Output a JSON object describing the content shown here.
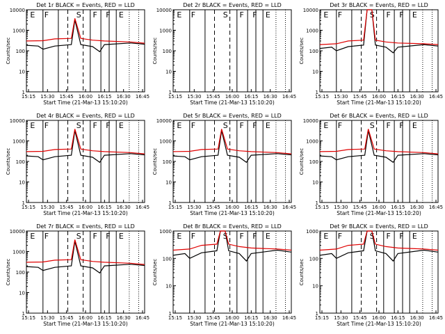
{
  "chart_data": [
    {
      "type": "line",
      "title": "Det 1r BLACK = Events, RED = LLD",
      "ylabel": "Counts/sec",
      "xlabel": "Start Time (21-Mar-13 15:10:20)",
      "yscale": "log",
      "ylim": [
        1,
        10000
      ],
      "x_ticks": [
        "15:15",
        "15:30",
        "15:45",
        "16:00",
        "16:15",
        "16:30",
        "16:45"
      ],
      "y_ticks": [
        "1",
        "10",
        "100",
        "1000",
        "10000"
      ],
      "region_labels": [
        "E",
        "F",
        "S",
        "F",
        "F",
        "E"
      ],
      "series": [
        {
          "color": "#000000",
          "points": [
            [
              0,
              185
            ],
            [
              10,
              170
            ],
            [
              14,
              120
            ],
            [
              24,
              170
            ],
            [
              38,
              200
            ],
            [
              41,
              3200
            ],
            [
              46,
              200
            ],
            [
              56,
              160
            ],
            [
              62,
              90
            ],
            [
              66,
              200
            ],
            [
              88,
              240
            ],
            [
              100,
              210
            ]
          ]
        },
        {
          "color": "#e00000",
          "points": [
            [
              0,
              300
            ],
            [
              14,
              310
            ],
            [
              24,
              380
            ],
            [
              38,
              400
            ],
            [
              41,
              3800
            ],
            [
              46,
              400
            ],
            [
              56,
              330
            ],
            [
              66,
              300
            ],
            [
              88,
              270
            ],
            [
              100,
              235
            ]
          ]
        }
      ]
    },
    {
      "type": "line",
      "title": "Det 2r BLACK = Events, RED = LLD",
      "ylabel": "Counts/sec",
      "xlabel": "Start Time (21-Mar-13 15:10:20)",
      "yscale": "log",
      "ylim": [
        1,
        10000
      ],
      "x_ticks": [
        "15:15",
        "15:30",
        "15:45",
        "16:00",
        "16:15",
        "16:30",
        "16:45"
      ],
      "y_ticks": [
        "1",
        "10",
        "100",
        "1000",
        "10000"
      ],
      "region_labels": [
        "E",
        "F",
        "S",
        "F",
        "F",
        "E"
      ],
      "series": []
    },
    {
      "type": "line",
      "title": "Det 3r BLACK = Events, RED = LLD",
      "ylabel": "Counts/sec",
      "xlabel": "Start Time (21-Mar-13 15:10:20)",
      "yscale": "log",
      "ylim": [
        1,
        10000
      ],
      "x_ticks": [
        "15:15",
        "15:30",
        "15:45",
        "16:00",
        "16:15",
        "16:30",
        "16:45"
      ],
      "y_ticks": [
        "1",
        "10",
        "100",
        "1000",
        "10000"
      ],
      "region_labels": [
        "E",
        "F",
        "S",
        "F",
        "F",
        "E"
      ],
      "series": [
        {
          "color": "#000000",
          "points": [
            [
              0,
              130
            ],
            [
              10,
              150
            ],
            [
              14,
              100
            ],
            [
              24,
              160
            ],
            [
              37,
              190
            ],
            [
              40,
              10000
            ],
            [
              44,
              10000
            ],
            [
              47,
              190
            ],
            [
              56,
              150
            ],
            [
              62,
              80
            ],
            [
              66,
              150
            ],
            [
              88,
              200
            ],
            [
              100,
              170
            ]
          ]
        },
        {
          "color": "#e00000",
          "points": [
            [
              0,
              200
            ],
            [
              14,
              220
            ],
            [
              24,
              300
            ],
            [
              37,
              330
            ],
            [
              40,
              10000
            ],
            [
              44,
              10000
            ],
            [
              47,
              330
            ],
            [
              56,
              270
            ],
            [
              66,
              240
            ],
            [
              88,
              220
            ],
            [
              100,
              200
            ]
          ]
        }
      ]
    },
    {
      "type": "line",
      "title": "Det 4r BLACK = Events, RED = LLD",
      "ylabel": "Counts/sec",
      "xlabel": "Start Time (21-Mar-13 15:10:20)",
      "yscale": "log",
      "ylim": [
        1,
        10000
      ],
      "x_ticks": [
        "15:15",
        "15:30",
        "15:45",
        "16:00",
        "16:15",
        "16:30",
        "16:45"
      ],
      "y_ticks": [
        "1",
        "10",
        "100",
        "1000",
        "10000"
      ],
      "region_labels": [
        "E",
        "F",
        "S",
        "F",
        "F",
        "E"
      ],
      "series": [
        {
          "color": "#000000",
          "points": [
            [
              0,
              185
            ],
            [
              10,
              170
            ],
            [
              14,
              120
            ],
            [
              24,
              170
            ],
            [
              38,
              200
            ],
            [
              41,
              3200
            ],
            [
              46,
              200
            ],
            [
              56,
              160
            ],
            [
              62,
              90
            ],
            [
              66,
              200
            ],
            [
              88,
              240
            ],
            [
              100,
              210
            ]
          ]
        },
        {
          "color": "#e00000",
          "points": [
            [
              0,
              300
            ],
            [
              14,
              310
            ],
            [
              24,
              380
            ],
            [
              38,
              400
            ],
            [
              41,
              3800
            ],
            [
              46,
              400
            ],
            [
              56,
              330
            ],
            [
              66,
              300
            ],
            [
              88,
              270
            ],
            [
              100,
              235
            ]
          ]
        }
      ]
    },
    {
      "type": "line",
      "title": "Det 5r BLACK = Events, RED = LLD",
      "ylabel": "Counts/sec",
      "xlabel": "Start Time (21-Mar-13 15:10:20)",
      "yscale": "log",
      "ylim": [
        1,
        10000
      ],
      "x_ticks": [
        "15:15",
        "15:30",
        "15:45",
        "16:00",
        "16:15",
        "16:30",
        "16:45"
      ],
      "y_ticks": [
        "1",
        "10",
        "100",
        "1000",
        "10000"
      ],
      "region_labels": [
        "E",
        "F",
        "S",
        "F",
        "F",
        "E"
      ],
      "series": [
        {
          "color": "#000000",
          "points": [
            [
              0,
              185
            ],
            [
              10,
              170
            ],
            [
              14,
              120
            ],
            [
              24,
              170
            ],
            [
              38,
              200
            ],
            [
              41,
              3200
            ],
            [
              46,
              200
            ],
            [
              56,
              160
            ],
            [
              62,
              90
            ],
            [
              66,
              200
            ],
            [
              88,
              240
            ],
            [
              100,
              210
            ]
          ]
        },
        {
          "color": "#e00000",
          "points": [
            [
              0,
              300
            ],
            [
              14,
              310
            ],
            [
              24,
              380
            ],
            [
              38,
              400
            ],
            [
              41,
              3800
            ],
            [
              46,
              400
            ],
            [
              56,
              330
            ],
            [
              66,
              300
            ],
            [
              88,
              270
            ],
            [
              100,
              235
            ]
          ]
        }
      ]
    },
    {
      "type": "line",
      "title": "Det 6r BLACK = Events, RED = LLD",
      "ylabel": "Counts/sec",
      "xlabel": "Start Time (21-Mar-13 15:10:20)",
      "yscale": "log",
      "ylim": [
        1,
        10000
      ],
      "x_ticks": [
        "15:15",
        "15:30",
        "15:45",
        "16:00",
        "16:15",
        "16:30",
        "16:45"
      ],
      "y_ticks": [
        "1",
        "10",
        "100",
        "1000",
        "10000"
      ],
      "region_labels": [
        "E",
        "F",
        "S",
        "F",
        "F",
        "E"
      ],
      "series": [
        {
          "color": "#000000",
          "points": [
            [
              0,
              185
            ],
            [
              10,
              170
            ],
            [
              14,
              120
            ],
            [
              24,
              170
            ],
            [
              38,
              200
            ],
            [
              41,
              3200
            ],
            [
              46,
              200
            ],
            [
              56,
              160
            ],
            [
              62,
              90
            ],
            [
              66,
              200
            ],
            [
              88,
              240
            ],
            [
              100,
              210
            ]
          ]
        },
        {
          "color": "#e00000",
          "points": [
            [
              0,
              300
            ],
            [
              14,
              310
            ],
            [
              24,
              380
            ],
            [
              38,
              400
            ],
            [
              41,
              3800
            ],
            [
              46,
              400
            ],
            [
              56,
              330
            ],
            [
              66,
              300
            ],
            [
              88,
              270
            ],
            [
              100,
              235
            ]
          ]
        }
      ]
    },
    {
      "type": "line",
      "title": "Det 7r BLACK = Events, RED = LLD",
      "ylabel": "Counts/sec",
      "xlabel": "Start Time (21-Mar-13 15:10:20)",
      "yscale": "log",
      "ylim": [
        1,
        10000
      ],
      "x_ticks": [
        "15:15",
        "15:30",
        "15:45",
        "16:00",
        "16:15",
        "16:30",
        "16:45"
      ],
      "y_ticks": [
        "1",
        "10",
        "100",
        "1000",
        "10000"
      ],
      "region_labels": [
        "E",
        "F",
        "S",
        "F",
        "F",
        "E"
      ],
      "series": [
        {
          "color": "#000000",
          "points": [
            [
              0,
              185
            ],
            [
              10,
              170
            ],
            [
              14,
              120
            ],
            [
              24,
              170
            ],
            [
              38,
              200
            ],
            [
              41,
              3200
            ],
            [
              46,
              200
            ],
            [
              56,
              160
            ],
            [
              62,
              90
            ],
            [
              66,
              200
            ],
            [
              88,
              240
            ],
            [
              100,
              210
            ]
          ]
        },
        {
          "color": "#e00000",
          "points": [
            [
              0,
              300
            ],
            [
              14,
              310
            ],
            [
              24,
              380
            ],
            [
              38,
              400
            ],
            [
              41,
              3800
            ],
            [
              46,
              400
            ],
            [
              56,
              330
            ],
            [
              66,
              300
            ],
            [
              88,
              270
            ],
            [
              100,
              235
            ]
          ]
        }
      ]
    },
    {
      "type": "line",
      "title": "Det 8r BLACK = Events, RED = LLD",
      "ylabel": "Counts/sec",
      "xlabel": "Start Time (21-Mar-13 15:10:20)",
      "yscale": "log",
      "ylim": [
        1,
        1000
      ],
      "x_ticks": [
        "15:15",
        "15:30",
        "15:45",
        "16:00",
        "16:15",
        "16:30",
        "16:45"
      ],
      "y_ticks": [
        "1",
        "10",
        "100",
        "1000"
      ],
      "region_labels": [
        "E",
        "F",
        "S",
        "F",
        "F",
        "E"
      ],
      "series": [
        {
          "color": "#000000",
          "points": [
            [
              0,
              130
            ],
            [
              10,
              150
            ],
            [
              14,
              100
            ],
            [
              24,
              160
            ],
            [
              37,
              190
            ],
            [
              40,
              1000
            ],
            [
              44,
              1000
            ],
            [
              47,
              190
            ],
            [
              56,
              150
            ],
            [
              62,
              80
            ],
            [
              66,
              150
            ],
            [
              88,
              200
            ],
            [
              100,
              170
            ]
          ]
        },
        {
          "color": "#e00000",
          "points": [
            [
              0,
              200
            ],
            [
              14,
              220
            ],
            [
              24,
              300
            ],
            [
              37,
              330
            ],
            [
              40,
              1000
            ],
            [
              44,
              1000
            ],
            [
              47,
              330
            ],
            [
              56,
              270
            ],
            [
              66,
              240
            ],
            [
              88,
              220
            ],
            [
              100,
              200
            ]
          ]
        }
      ]
    },
    {
      "type": "line",
      "title": "Det 9r BLACK = Events, RED = LLD",
      "ylabel": "Counts/sec",
      "xlabel": "Start Time (21-Mar-13 15:10:20)",
      "yscale": "log",
      "ylim": [
        1,
        1000
      ],
      "x_ticks": [
        "15:15",
        "15:30",
        "15:45",
        "16:00",
        "16:15",
        "16:30",
        "16:45"
      ],
      "y_ticks": [
        "1",
        "10",
        "100",
        "1000"
      ],
      "region_labels": [
        "E",
        "F",
        "S",
        "F",
        "F",
        "E"
      ],
      "series": [
        {
          "color": "#000000",
          "points": [
            [
              0,
              130
            ],
            [
              10,
              150
            ],
            [
              14,
              100
            ],
            [
              24,
              160
            ],
            [
              37,
              190
            ],
            [
              40,
              1000
            ],
            [
              44,
              1000
            ],
            [
              47,
              190
            ],
            [
              56,
              150
            ],
            [
              62,
              80
            ],
            [
              66,
              150
            ],
            [
              88,
              200
            ],
            [
              100,
              170
            ]
          ]
        },
        {
          "color": "#e00000",
          "points": [
            [
              0,
              200
            ],
            [
              14,
              220
            ],
            [
              24,
              300
            ],
            [
              37,
              330
            ],
            [
              40,
              1000
            ],
            [
              44,
              1000
            ],
            [
              47,
              330
            ],
            [
              56,
              270
            ],
            [
              66,
              240
            ],
            [
              88,
              220
            ],
            [
              100,
              200
            ]
          ]
        }
      ]
    }
  ]
}
